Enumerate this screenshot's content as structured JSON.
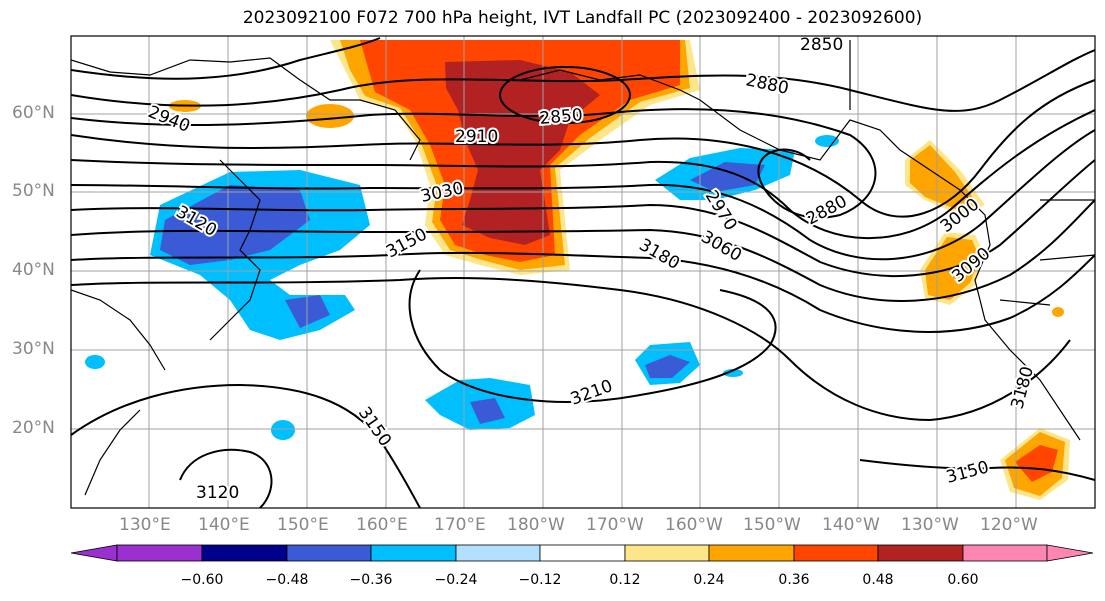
{
  "title": "2023092100 F072 700 hPa height, IVT Landfall PC (2023092400 - 2023092600)",
  "lat_labels": [
    "60°N",
    "50°N",
    "40°N",
    "30°N",
    "20°N"
  ],
  "lon_labels": [
    "130°E",
    "140°E",
    "150°E",
    "160°E",
    "170°E",
    "180°W",
    "170°W",
    "160°W",
    "150°W",
    "140°W",
    "130°W",
    "120°W"
  ],
  "contour_labels": [
    "2850",
    "2880",
    "2940",
    "2850",
    "2910",
    "3030",
    "3120",
    "3150",
    "2970",
    "2880",
    "3060",
    "3180",
    "3000",
    "3090",
    "3210",
    "3150",
    "3180",
    "3120",
    "3150"
  ],
  "colorbar": {
    "ticks": [
      "−0.60",
      "−0.48",
      "−0.36",
      "−0.24",
      "−0.12",
      "0.12",
      "0.24",
      "0.36",
      "0.48",
      "0.60"
    ],
    "colors": [
      "#9b30d0",
      "#00008b",
      "#3b5bd6",
      "#00bfff",
      "#b3e0ff",
      "#ffffff",
      "#fde68a",
      "#ffa500",
      "#ff4500",
      "#b22222",
      "#ff86b0"
    ]
  }
}
